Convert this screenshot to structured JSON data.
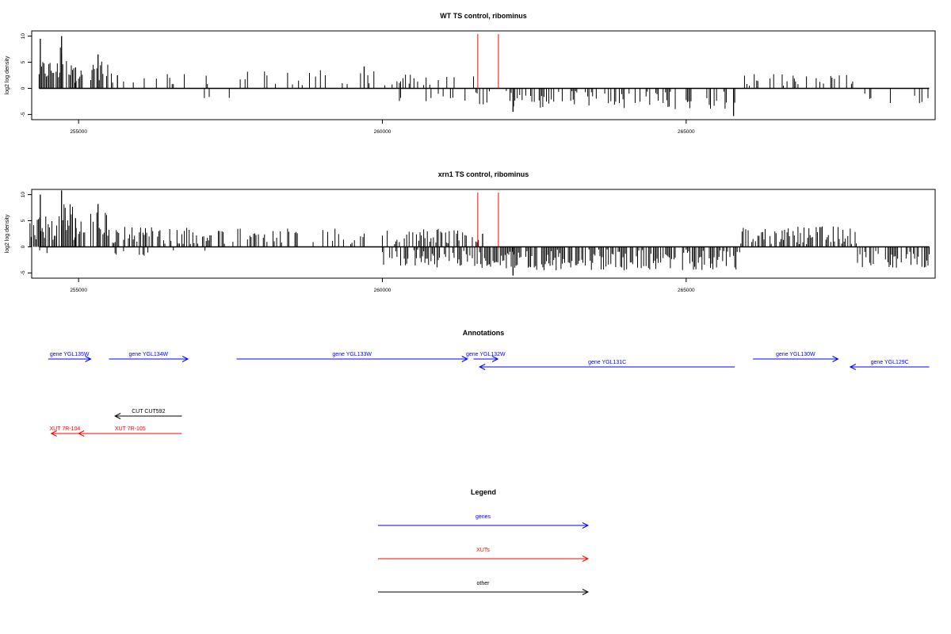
{
  "colors": {
    "axis": "#000000",
    "genes": "#0000ff",
    "xuts": "#ff0000",
    "other": "#000000",
    "marker": "#ff0000"
  },
  "chart_data": [
    {
      "type": "bar",
      "title": "WT TS control, ribominus",
      "ylabel": "log2 log density",
      "xlim": [
        254150,
        269150
      ],
      "ylim": [
        -6,
        11
      ],
      "xticks": [
        255000,
        260000,
        265000
      ],
      "yticks": [
        -5,
        0,
        5,
        10
      ],
      "markers_x": [
        261570,
        261910
      ],
      "positive_regions": [
        {
          "x0": 254350,
          "x1": 254700,
          "density": 0.9,
          "height": [
            1.5,
            5.5
          ]
        },
        {
          "x0": 254700,
          "x1": 254900,
          "density": 0.8,
          "height": [
            2,
            8
          ]
        },
        {
          "x0": 254900,
          "x1": 255100,
          "density": 0.6,
          "height": [
            1,
            4
          ]
        },
        {
          "x0": 255200,
          "x1": 255500,
          "density": 0.7,
          "height": [
            1.5,
            6
          ]
        },
        {
          "x0": 255500,
          "x1": 257200,
          "density": 0.18,
          "height": [
            0.5,
            3
          ]
        },
        {
          "x0": 257400,
          "x1": 261500,
          "density": 0.22,
          "height": [
            0.5,
            3.5
          ]
        },
        {
          "x0": 265900,
          "x1": 267800,
          "density": 0.25,
          "height": [
            0.5,
            2.8
          ]
        }
      ],
      "negative_regions": [
        {
          "x0": 256200,
          "x1": 256400,
          "density": 0.05,
          "height": [
            0.5,
            1.2
          ]
        },
        {
          "x0": 257050,
          "x1": 257150,
          "density": 0.2,
          "height": [
            1.5,
            2
          ]
        },
        {
          "x0": 257400,
          "x1": 257500,
          "density": 0.2,
          "height": [
            1.5,
            2
          ]
        },
        {
          "x0": 260200,
          "x1": 261500,
          "density": 0.2,
          "height": [
            0.5,
            2.5
          ]
        },
        {
          "x0": 261500,
          "x1": 265900,
          "density": 0.32,
          "height": [
            0.5,
            4
          ]
        },
        {
          "x0": 267900,
          "x1": 269000,
          "density": 0.2,
          "height": [
            0.5,
            3
          ]
        }
      ],
      "spikes": [
        {
          "x": 254370,
          "y": 9.5
        },
        {
          "x": 254720,
          "y": 10.0
        },
        {
          "x": 254950,
          "y": 4.0
        },
        {
          "x": 255320,
          "y": 6.5
        },
        {
          "x": 255640,
          "y": 2.5
        },
        {
          "x": 259700,
          "y": 4.2
        },
        {
          "x": 265780,
          "y": -5.3
        },
        {
          "x": 262150,
          "y": -4.5
        }
      ]
    },
    {
      "type": "bar",
      "title": "xrn1 TS control, ribominus",
      "ylabel": "log2 log density",
      "xlim": [
        254150,
        269150
      ],
      "ylim": [
        -6,
        11
      ],
      "xticks": [
        255000,
        260000,
        265000
      ],
      "yticks": [
        -5,
        0,
        5,
        10
      ],
      "markers_x": [
        261570,
        261910
      ],
      "positive_regions": [
        {
          "x0": 254200,
          "x1": 254700,
          "density": 0.7,
          "height": [
            1,
            6
          ]
        },
        {
          "x0": 254700,
          "x1": 254900,
          "density": 0.8,
          "height": [
            2,
            9
          ]
        },
        {
          "x0": 254900,
          "x1": 255100,
          "density": 0.6,
          "height": [
            1,
            5
          ]
        },
        {
          "x0": 255200,
          "x1": 255500,
          "density": 0.8,
          "height": [
            2,
            7
          ]
        },
        {
          "x0": 255500,
          "x1": 257200,
          "density": 0.55,
          "height": [
            0.5,
            4
          ]
        },
        {
          "x0": 257300,
          "x1": 261600,
          "density": 0.35,
          "height": [
            0.5,
            3.5
          ]
        },
        {
          "x0": 265900,
          "x1": 267800,
          "density": 0.7,
          "height": [
            0.5,
            4
          ]
        }
      ],
      "negative_regions": [
        {
          "x0": 254300,
          "x1": 254500,
          "density": 0.15,
          "height": [
            0.5,
            1.2
          ]
        },
        {
          "x0": 255600,
          "x1": 256600,
          "density": 0.15,
          "height": [
            0.5,
            2.5
          ]
        },
        {
          "x0": 256700,
          "x1": 257200,
          "density": 0.15,
          "height": [
            0.5,
            2.5
          ]
        },
        {
          "x0": 260000,
          "x1": 261600,
          "density": 0.55,
          "height": [
            0.5,
            4
          ]
        },
        {
          "x0": 261600,
          "x1": 265900,
          "density": 0.75,
          "height": [
            0.5,
            4.5
          ]
        },
        {
          "x0": 267800,
          "x1": 269000,
          "density": 0.55,
          "height": [
            0.5,
            4
          ]
        }
      ],
      "spikes": [
        {
          "x": 254370,
          "y": 10.0
        },
        {
          "x": 254720,
          "y": 10.8
        },
        {
          "x": 254950,
          "y": 5.5
        },
        {
          "x": 255320,
          "y": 8.2
        },
        {
          "x": 262150,
          "y": -5.5
        },
        {
          "x": 261650,
          "y": 2.5
        }
      ]
    }
  ],
  "annotations": {
    "title": "Annotations",
    "features": [
      {
        "label": "gene YGL135W",
        "x0": 254500,
        "x1": 255200,
        "strand": "+",
        "type": "genes",
        "row": 0
      },
      {
        "label": "gene YGL134W",
        "x0": 255500,
        "x1": 256800,
        "strand": "+",
        "type": "genes",
        "row": 0
      },
      {
        "label": "gene YGL133W",
        "x0": 257600,
        "x1": 261400,
        "strand": "+",
        "type": "genes",
        "row": 0
      },
      {
        "label": "gene YGL132W",
        "x0": 261500,
        "x1": 261900,
        "strand": "+",
        "type": "genes",
        "row": 0
      },
      {
        "label": "gene YGL131C",
        "x0": 261600,
        "x1": 265800,
        "strand": "-",
        "type": "genes",
        "row": 1
      },
      {
        "label": "gene YGL130W",
        "x0": 266100,
        "x1": 267500,
        "strand": "+",
        "type": "genes",
        "row": 0
      },
      {
        "label": "gene YGL129C",
        "x0": 267700,
        "x1": 269000,
        "strand": "-",
        "type": "genes",
        "row": 1
      },
      {
        "label": "CUT CUT592",
        "x0": 255600,
        "x1": 256700,
        "strand": "-",
        "type": "other",
        "row": 2
      },
      {
        "label": "XUT 7R-104",
        "x0": 254550,
        "x1": 255000,
        "strand": "-",
        "type": "xuts",
        "row": 3
      },
      {
        "label": "XUT 7R-105",
        "x0": 255000,
        "x1": 256700,
        "strand": "-",
        "type": "xuts",
        "row": 3
      }
    ]
  },
  "legend": {
    "title": "Legend",
    "items": [
      {
        "label": "genes",
        "type": "genes"
      },
      {
        "label": "XUTs",
        "type": "xuts"
      },
      {
        "label": "other",
        "type": "other"
      }
    ]
  }
}
